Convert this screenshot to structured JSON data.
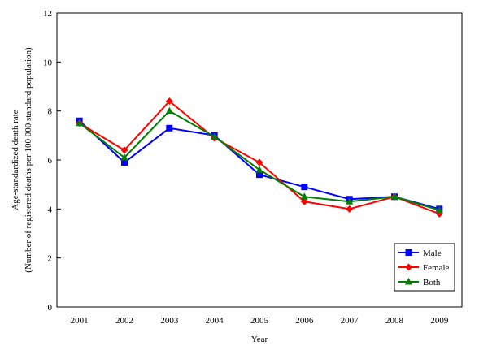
{
  "chart_data": {
    "type": "line",
    "title": "",
    "xlabel": "Year",
    "ylabel": "Age-standardized death rate",
    "ylabel2": "(Number of registered deaths per 100 000 standard population)",
    "x": [
      "2001",
      "2002",
      "2003",
      "2004",
      "2005",
      "2006",
      "2007",
      "2008",
      "2009"
    ],
    "ylim": [
      0,
      12
    ],
    "yticks": [
      0,
      2,
      4,
      6,
      8,
      10,
      12
    ],
    "grid": false,
    "legend_position": "bottom-right",
    "series": [
      {
        "name": "Male",
        "color": "#0000ff",
        "marker": "square",
        "values": [
          7.6,
          5.9,
          7.3,
          7.0,
          5.4,
          4.9,
          4.4,
          4.5,
          4.0
        ]
      },
      {
        "name": "Female",
        "color": "#ff0000",
        "marker": "diamond",
        "values": [
          7.5,
          6.4,
          8.4,
          6.9,
          5.9,
          4.3,
          4.0,
          4.5,
          3.8
        ]
      },
      {
        "name": "Both",
        "color": "#008000",
        "marker": "triangle",
        "values": [
          7.5,
          6.1,
          8.0,
          6.95,
          5.6,
          4.5,
          4.3,
          4.5,
          3.95
        ]
      }
    ]
  }
}
